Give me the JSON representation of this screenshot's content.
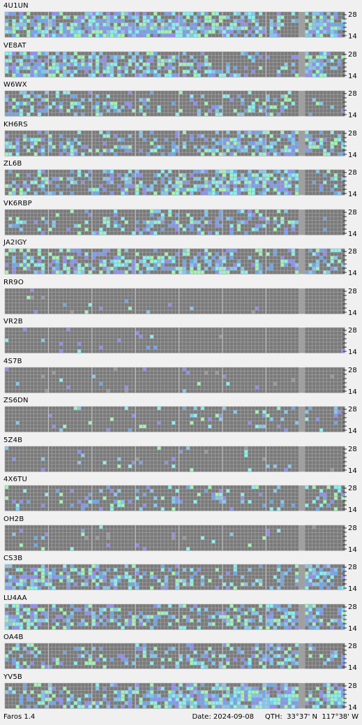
{
  "colors": {
    "cell": "#7a7a7a",
    "grid": "#a8a8a8",
    "right_gap": "#a0a0a0",
    "hour_mark": "#c8c8c8",
    "levels": [
      "#7a7a7a",
      "#9a9a9a",
      "#6fa7e8",
      "#8f8ff0",
      "#83c8f0",
      "#88f0f0",
      "#9ff5b0"
    ]
  },
  "axis": {
    "top": "28",
    "bottom": "14"
  },
  "beacons": [
    {
      "name": "4U1UN",
      "activity": 0.72,
      "right_activity": 0.8
    },
    {
      "name": "VE8AT",
      "activity": 0.52,
      "right_activity": 0.6
    },
    {
      "name": "W6WX",
      "activity": 0.4,
      "right_activity": 0.1
    },
    {
      "name": "KH6RS",
      "activity": 0.58,
      "right_activity": 0.7
    },
    {
      "name": "ZL6B",
      "activity": 0.62,
      "right_activity": 0.3
    },
    {
      "name": "VK6RBP",
      "activity": 0.3,
      "right_activity": 0.05
    },
    {
      "name": "JA2IGY",
      "activity": 0.48,
      "right_activity": 0.45
    },
    {
      "name": "RR9O",
      "activity": 0.02,
      "right_activity": 0.0
    },
    {
      "name": "VR2B",
      "activity": 0.01,
      "right_activity": 0.0
    },
    {
      "name": "4S7B",
      "activity": 0.02,
      "right_activity": 0.0
    },
    {
      "name": "ZS6DN",
      "activity": 0.12,
      "right_activity": 0.25
    },
    {
      "name": "5Z4B",
      "activity": 0.04,
      "right_activity": 0.0
    },
    {
      "name": "4X6TU",
      "activity": 0.18,
      "right_activity": 0.25
    },
    {
      "name": "OH2B",
      "activity": 0.03,
      "right_activity": 0.0
    },
    {
      "name": "CS3B",
      "activity": 0.45,
      "right_activity": 0.55
    },
    {
      "name": "LU4AA",
      "activity": 0.62,
      "right_activity": 0.85
    },
    {
      "name": "OA4B",
      "activity": 0.4,
      "right_activity": 0.35
    },
    {
      "name": "YV5B",
      "activity": 0.68,
      "right_activity": 0.75
    }
  ],
  "status": {
    "app_name": "Faros 1.4",
    "date": "Date: 2024-09-08",
    "qth": "QTH:  33°37' N  117°38' W"
  }
}
